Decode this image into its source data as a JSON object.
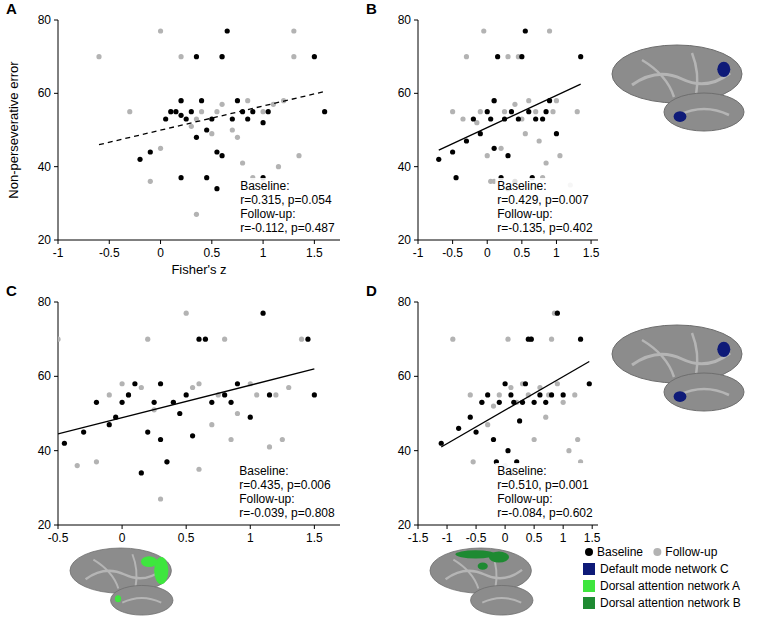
{
  "chart_data": [
    {
      "type": "scatter",
      "title": "A",
      "xlabel": "Fisher's z",
      "ylabel": "Non-perseverative error",
      "legend": "bottom-right",
      "xlim": [
        -1,
        1.75
      ],
      "ylim": [
        20,
        80
      ],
      "xticks": [
        -1,
        -0.5,
        0,
        0.5,
        1,
        1.5
      ],
      "yticks": [
        20,
        40,
        60,
        80
      ],
      "annotations": [
        "Baseline:",
        "r=0.315, p=0.054",
        "Follow-up:",
        "r=-0.112, p=0.487"
      ],
      "series": [
        {
          "name": "Baseline",
          "color": "#000000",
          "marker": "circle",
          "x": [
            -0.2,
            -0.1,
            0.05,
            0.1,
            0.15,
            0.2,
            0.2,
            0.2,
            0.25,
            0.3,
            0.35,
            0.45,
            0.45,
            0.5,
            0.55,
            0.55,
            0.6,
            0.6,
            0.65,
            0.7,
            0.75,
            0.8,
            0.85,
            0.9,
            1.0,
            1.05,
            1.0,
            1.5,
            1.6,
            0.35,
            0.4
          ],
          "values": [
            42,
            44,
            53,
            55,
            55,
            58,
            54,
            37,
            53,
            55,
            70,
            37,
            50,
            53,
            34,
            44,
            43,
            70,
            77,
            53,
            58,
            55,
            53,
            55,
            52,
            55,
            37,
            70,
            55,
            48,
            58
          ]
        },
        {
          "name": "Follow-up",
          "color": "#b3b3b3",
          "marker": "circle",
          "x": [
            -0.6,
            -0.3,
            -0.1,
            0.0,
            0.0,
            0.1,
            0.2,
            0.2,
            0.3,
            0.35,
            0.4,
            0.35,
            0.5,
            0.55,
            0.6,
            0.6,
            0.7,
            0.75,
            0.85,
            0.9,
            0.95,
            1.0,
            1.1,
            1.15,
            1.2,
            1.3,
            1.35,
            1.3,
            1.0,
            0.8
          ],
          "values": [
            70,
            55,
            36,
            77,
            45,
            55,
            70,
            58,
            51,
            53,
            55,
            27,
            49,
            55,
            57,
            70,
            50,
            48,
            58,
            37,
            35,
            55,
            57,
            40,
            58,
            77,
            43,
            70,
            36,
            41
          ]
        },
        {
          "type": "line",
          "line_style": "dashed",
          "color": "#000000",
          "x": [
            -0.6,
            1.6
          ],
          "values": [
            46,
            60.5
          ]
        }
      ]
    },
    {
      "type": "scatter",
      "title": "B",
      "networks": [
        "Default mode network C"
      ],
      "xlim": [
        -1,
        1.6
      ],
      "ylim": [
        20,
        80
      ],
      "xticks": [
        -1,
        -0.5,
        0,
        0.5,
        1,
        1.5
      ],
      "yticks": [
        20,
        40,
        60,
        80
      ],
      "annotations": [
        "Baseline:",
        "r=0.429, p=0.007",
        "Follow-up:",
        "r=-0.135, p=0.402"
      ],
      "series": [
        {
          "color": "#000000",
          "marker": "circle",
          "x": [
            -0.7,
            -0.5,
            -0.45,
            -0.3,
            -0.2,
            -0.1,
            0.0,
            0.05,
            0.1,
            0.15,
            0.2,
            0.25,
            0.3,
            0.3,
            0.35,
            0.4,
            0.45,
            0.5,
            0.55,
            0.6,
            0.7,
            0.8,
            0.85,
            0.9,
            1.0,
            1.35,
            0.65,
            0.1
          ],
          "values": [
            42,
            44,
            37,
            47,
            53,
            49,
            55,
            53,
            58,
            70,
            37,
            53,
            34,
            43,
            55,
            36,
            53,
            70,
            77,
            55,
            53,
            53,
            55,
            58,
            49,
            70,
            37,
            45
          ]
        },
        {
          "color": "#b3b3b3",
          "marker": "circle",
          "x": [
            -0.5,
            -0.3,
            -0.35,
            -0.15,
            -0.1,
            -0.05,
            0.0,
            0.05,
            0.1,
            0.2,
            0.25,
            0.3,
            0.35,
            0.4,
            0.5,
            0.55,
            0.6,
            0.7,
            0.75,
            0.8,
            0.85,
            0.9,
            0.95,
            1.0,
            1.05,
            1.2,
            1.3,
            0.45,
            0.1
          ],
          "values": [
            55,
            70,
            53,
            52,
            55,
            77,
            43,
            36,
            58,
            45,
            55,
            70,
            27,
            57,
            53,
            49,
            58,
            55,
            47,
            37,
            41,
            77,
            55,
            58,
            43,
            35,
            55,
            70,
            36
          ]
        },
        {
          "type": "line",
          "line_style": "solid",
          "color": "#000000",
          "x": [
            -0.7,
            1.35
          ],
          "values": [
            44.5,
            62.5
          ]
        }
      ]
    },
    {
      "type": "scatter",
      "title": "C",
      "networks": [
        "Dorsal attention network A"
      ],
      "xlim": [
        -0.5,
        1.7
      ],
      "ylim": [
        20,
        80
      ],
      "xticks": [
        -0.5,
        0,
        0.5,
        1,
        1.5
      ],
      "yticks": [
        20,
        40,
        60,
        80
      ],
      "annotations": [
        "Baseline:",
        "r=0.435, p=0.006",
        "Follow-up:",
        "r=-0.039, p=0.808"
      ],
      "series": [
        {
          "color": "#000000",
          "marker": "circle",
          "x": [
            -0.45,
            -0.3,
            -0.2,
            -0.1,
            -0.05,
            0.0,
            0.05,
            0.1,
            0.15,
            0.2,
            0.25,
            0.3,
            0.35,
            0.4,
            0.45,
            0.5,
            0.55,
            0.6,
            0.65,
            0.7,
            0.8,
            0.85,
            0.9,
            1.0,
            1.1,
            1.15,
            1.45,
            1.5,
            0.3
          ],
          "values": [
            42,
            45,
            53,
            47,
            49,
            53,
            55,
            58,
            34,
            45,
            53,
            58,
            37,
            53,
            50,
            55,
            44,
            70,
            70,
            53,
            55,
            53,
            58,
            49,
            77,
            55,
            70,
            55,
            43
          ]
        },
        {
          "color": "#b3b3b3",
          "marker": "circle",
          "x": [
            -0.5,
            -0.35,
            -0.2,
            -0.1,
            0.0,
            0.05,
            0.15,
            0.2,
            0.25,
            0.3,
            0.35,
            0.4,
            0.5,
            0.55,
            0.6,
            0.7,
            0.75,
            0.8,
            0.85,
            0.9,
            1.0,
            1.05,
            1.15,
            1.2,
            1.25,
            1.3,
            1.4,
            0.6
          ],
          "values": [
            70,
            36,
            37,
            55,
            58,
            55,
            57,
            70,
            51,
            27,
            37,
            53,
            77,
            57,
            58,
            47,
            55,
            70,
            43,
            50,
            58,
            55,
            41,
            55,
            43,
            57,
            70,
            35
          ]
        },
        {
          "type": "line",
          "line_style": "solid",
          "color": "#000000",
          "x": [
            -0.5,
            1.5
          ],
          "values": [
            44.5,
            62
          ]
        }
      ]
    },
    {
      "type": "scatter",
      "title": "D",
      "networks": [
        "Default mode network C",
        "Dorsal attention network B"
      ],
      "xlim": [
        -1.5,
        1.6
      ],
      "ylim": [
        20,
        80
      ],
      "xticks": [
        -1.5,
        -1,
        -0.5,
        0,
        0.5,
        1,
        1.5
      ],
      "yticks": [
        20,
        40,
        60,
        80
      ],
      "annotations": [
        "Baseline:",
        "r=0.510, p=0.001",
        "Follow-up:",
        "r=-0.084, p=0.602"
      ],
      "series": [
        {
          "color": "#000000",
          "marker": "circle",
          "x": [
            -1.1,
            -0.8,
            -0.6,
            -0.5,
            -0.4,
            -0.3,
            -0.2,
            -0.15,
            -0.1,
            0.0,
            0.05,
            0.1,
            0.1,
            0.15,
            0.2,
            0.3,
            0.35,
            0.4,
            0.45,
            0.5,
            0.6,
            0.7,
            0.8,
            0.9,
            1.0,
            1.3,
            1.45,
            0.25
          ],
          "values": [
            42,
            46,
            49,
            45,
            53,
            55,
            43,
            37,
            53,
            58,
            40,
            34,
            55,
            53,
            37,
            53,
            58,
            70,
            70,
            53,
            55,
            53,
            55,
            77,
            55,
            70,
            58,
            48
          ]
        },
        {
          "color": "#b3b3b3",
          "marker": "circle",
          "x": [
            -0.9,
            -0.6,
            -0.55,
            -0.4,
            -0.3,
            -0.2,
            -0.1,
            0.0,
            0.05,
            0.1,
            0.2,
            0.25,
            0.3,
            0.4,
            0.45,
            0.5,
            0.6,
            0.7,
            0.75,
            0.85,
            0.9,
            1.0,
            1.1,
            1.2,
            1.25,
            1.3,
            0.8
          ],
          "values": [
            70,
            55,
            37,
            53,
            47,
            52,
            55,
            36,
            70,
            57,
            53,
            27,
            58,
            55,
            70,
            43,
            57,
            49,
            55,
            77,
            58,
            53,
            40,
            55,
            43,
            37,
            70
          ]
        },
        {
          "type": "line",
          "line_style": "solid",
          "color": "#000000",
          "x": [
            -1.1,
            1.45
          ],
          "values": [
            41,
            64
          ]
        }
      ]
    }
  ],
  "networks": [
    {
      "name": "Default mode network C",
      "color": "#0e1a78"
    },
    {
      "name": "Dorsal attention network A",
      "color": "#3ee63e"
    },
    {
      "name": "Dorsal attention network B",
      "color": "#1e8a32"
    }
  ]
}
